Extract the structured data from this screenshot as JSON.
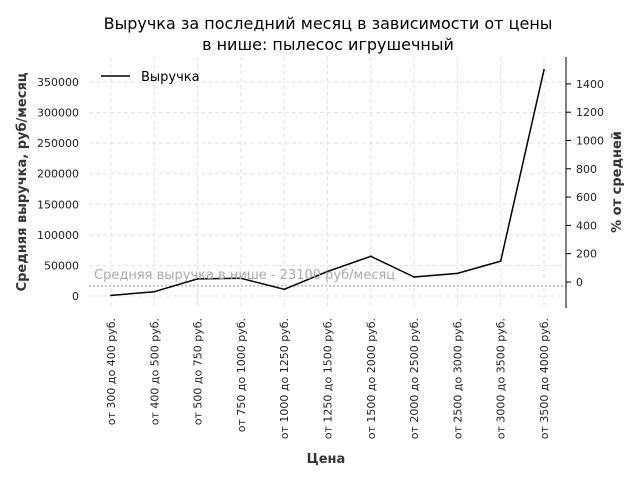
{
  "chart_data": {
    "type": "line",
    "title_line1": "Выручка за последний месяц в зависимости от цены",
    "title_line2": "в нише: пылесос игрушечный",
    "xlabel": "Цена",
    "ylabel_left": "Средняя выручка, руб/месяц",
    "ylabel_right": "% от средней",
    "categories": [
      "от 300 до 400 руб.",
      "от 400 до 500 руб.",
      "от 500 до 750 руб.",
      "от 750 до 1000 руб.",
      "от 1000 до 1250 руб.",
      "от 1250 до 1500 руб.",
      "от 1500 до 2000 руб.",
      "от 2000 до 2500 руб.",
      "от 2500 до 3000 руб.",
      "от 3000 до 3500 руб.",
      "от 3500 до 4000 руб."
    ],
    "series": [
      {
        "name": "Выручка",
        "values": [
          1000,
          7000,
          28000,
          29000,
          11000,
          40000,
          65000,
          31000,
          37000,
          57000,
          370000
        ]
      }
    ],
    "ylim_left": [
      -20000,
      385000
    ],
    "yticks_left": [
      "0",
      "50000",
      "100000",
      "150000",
      "200000",
      "250000",
      "300000",
      "350000"
    ],
    "yticks_right": [
      "0",
      "200",
      "400",
      "600",
      "800",
      "1000",
      "1200",
      "1400"
    ],
    "average": {
      "value": 23100,
      "label": "Средняя выручка в нише - 23100 руб/месяц"
    },
    "grid": true,
    "legend_position": "top-left",
    "colors": {
      "line": "#000000",
      "grid": "#e3e3e3",
      "average": "#aaaaaa"
    }
  }
}
